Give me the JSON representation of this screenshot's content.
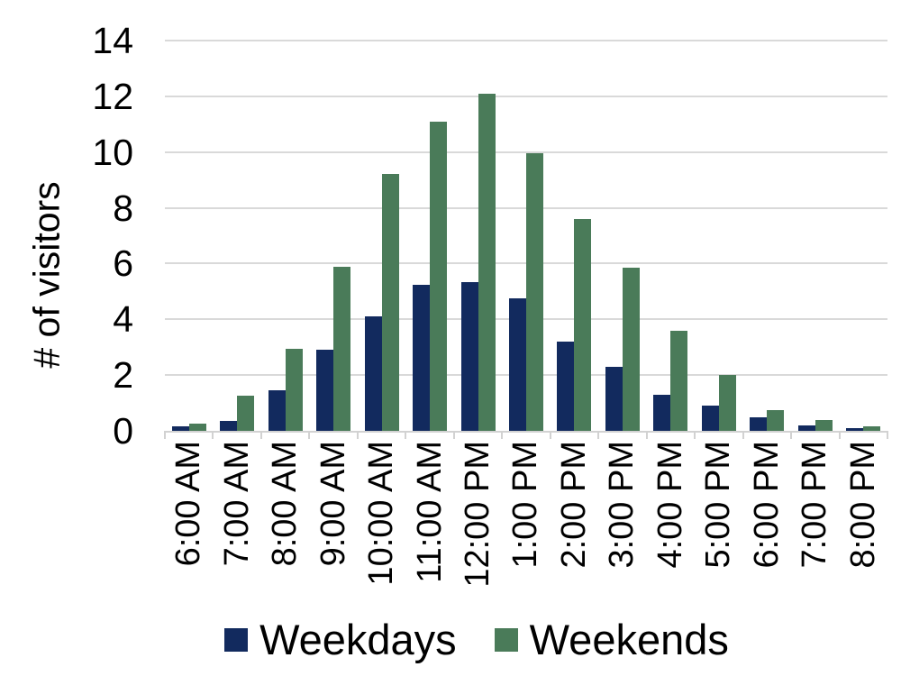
{
  "chart_data": {
    "type": "bar",
    "title": "",
    "xlabel": "",
    "ylabel": "# of visitors",
    "ylim": [
      0,
      14
    ],
    "yticks": [
      0,
      2,
      4,
      6,
      8,
      10,
      12,
      14
    ],
    "grid": "horizontal",
    "legend_position": "bottom",
    "gridline_color": "#d9d9d9",
    "axis_color": "#d2d2d2",
    "text_color": "#000000",
    "categories": [
      "6:00 AM",
      "7:00 AM",
      "8:00 AM",
      "9:00 AM",
      "10:00 AM",
      "11:00 AM",
      "12:00 PM",
      "1:00 PM",
      "2:00 PM",
      "3:00 PM",
      "4:00 PM",
      "5:00 PM",
      "6:00 PM",
      "7:00 PM",
      "8:00 PM"
    ],
    "series": [
      {
        "name": "Weekdays",
        "color": "#122a5e",
        "values": [
          0.15,
          0.35,
          1.45,
          2.9,
          4.1,
          5.25,
          5.35,
          4.75,
          3.2,
          2.3,
          1.3,
          0.9,
          0.5,
          0.2,
          0.1
        ]
      },
      {
        "name": "Weekends",
        "color": "#4a7b59",
        "values": [
          0.25,
          1.25,
          2.95,
          5.9,
          9.2,
          11.1,
          12.1,
          9.95,
          7.6,
          5.85,
          3.6,
          2.0,
          0.75,
          0.4,
          0.15
        ]
      }
    ]
  }
}
